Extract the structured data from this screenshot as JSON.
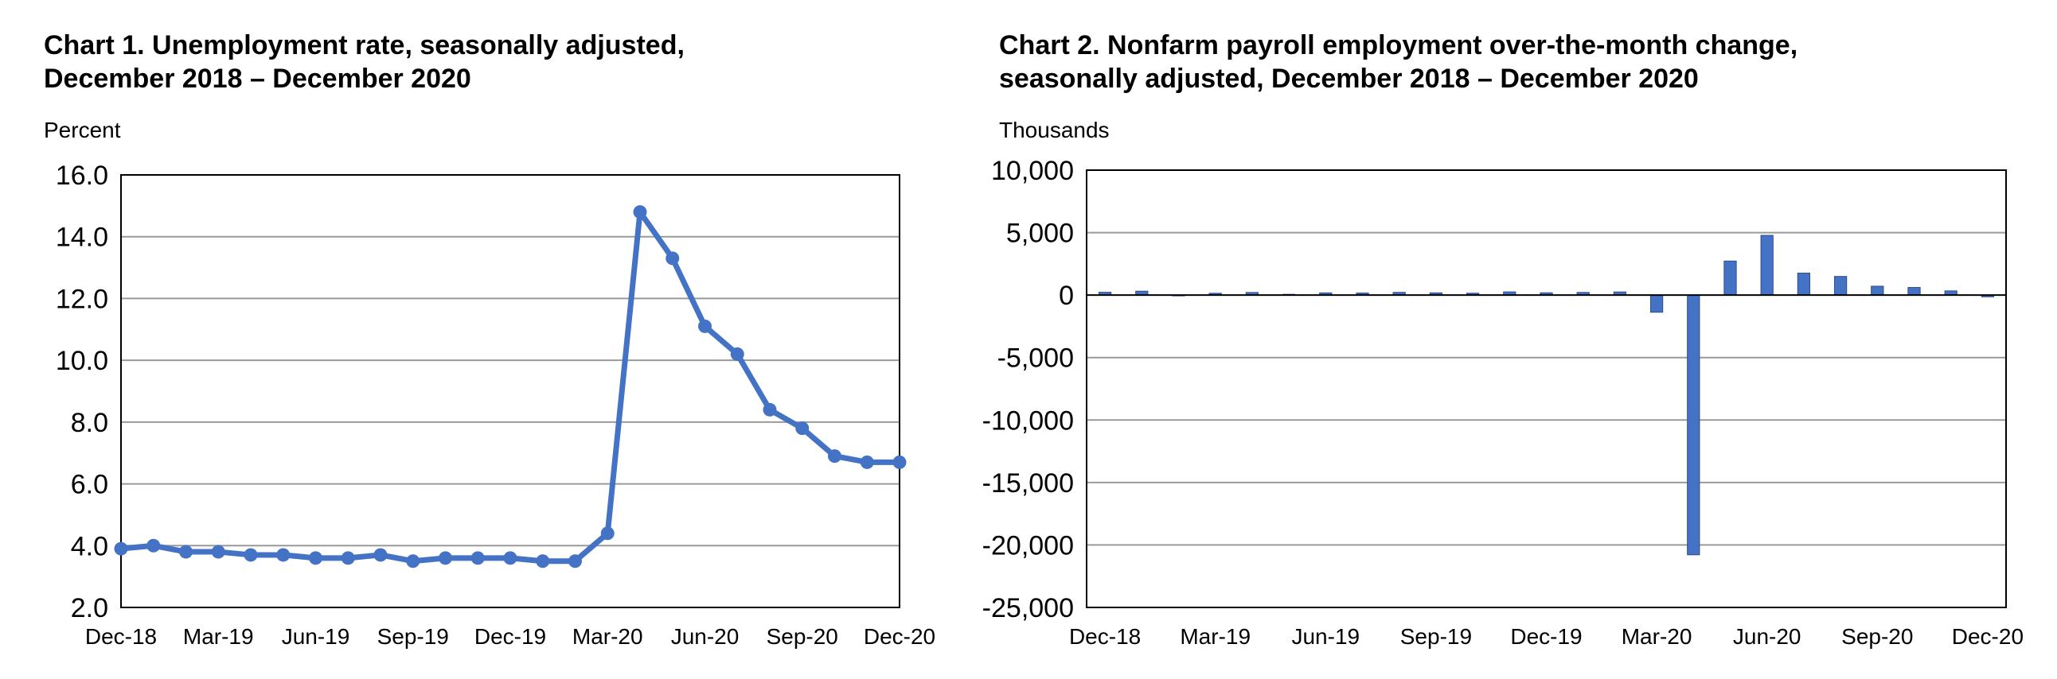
{
  "chart_data": [
    {
      "type": "line",
      "title": [
        "Chart 1. Unemployment rate, seasonally adjusted,",
        "December 2018 – December 2020"
      ],
      "ylabel": "Percent",
      "xlabel": "",
      "ylim": [
        2,
        16
      ],
      "y_ticks": [
        "16.0",
        "14.0",
        "12.0",
        "10.0",
        "8.0",
        "6.0",
        "4.0",
        "2.0"
      ],
      "x_tick_labels": [
        "Dec-18",
        "Mar-19",
        "Jun-19",
        "Sep-19",
        "Dec-19",
        "Mar-20",
        "Jun-20",
        "Sep-20",
        "Dec-20"
      ],
      "grid": true,
      "color": "#4472C4",
      "x": [
        "Dec-18",
        "Jan-19",
        "Feb-19",
        "Mar-19",
        "Apr-19",
        "May-19",
        "Jun-19",
        "Jul-19",
        "Aug-19",
        "Sep-19",
        "Oct-19",
        "Nov-19",
        "Dec-19",
        "Jan-20",
        "Feb-20",
        "Mar-20",
        "Apr-20",
        "May-20",
        "Jun-20",
        "Jul-20",
        "Aug-20",
        "Sep-20",
        "Oct-20",
        "Nov-20",
        "Dec-20"
      ],
      "values": [
        3.9,
        4.0,
        3.8,
        3.8,
        3.7,
        3.7,
        3.6,
        3.6,
        3.7,
        3.5,
        3.6,
        3.6,
        3.6,
        3.5,
        3.5,
        4.4,
        14.8,
        13.3,
        11.1,
        10.2,
        8.4,
        7.8,
        6.9,
        6.7,
        6.7
      ]
    },
    {
      "type": "bar",
      "title": [
        "Chart 2. Nonfarm payroll employment over-the-month change,",
        "seasonally adjusted, December 2018 – December 2020"
      ],
      "ylabel": "Thousands",
      "xlabel": "",
      "ylim": [
        -25000,
        10000
      ],
      "y_ticks": [
        "10,000",
        "5,000",
        "0",
        "-5,000",
        "-10,000",
        "-15,000",
        "-20,000",
        "-25,000"
      ],
      "x_tick_labels": [
        "Dec-18",
        "Mar-19",
        "Jun-19",
        "Sep-19",
        "Dec-19",
        "Mar-20",
        "Jun-20",
        "Sep-20",
        "Dec-20"
      ],
      "grid": true,
      "color": "#4472C4",
      "x": [
        "Dec-18",
        "Jan-19",
        "Feb-19",
        "Mar-19",
        "Apr-19",
        "May-19",
        "Jun-19",
        "Jul-19",
        "Aug-19",
        "Sep-19",
        "Oct-19",
        "Nov-19",
        "Dec-19",
        "Jan-20",
        "Feb-20",
        "Mar-20",
        "Apr-20",
        "May-20",
        "Jun-20",
        "Jul-20",
        "Aug-20",
        "Sep-20",
        "Oct-20",
        "Nov-20",
        "Dec-20"
      ],
      "values": [
        227,
        312,
        1,
        147,
        210,
        62,
        178,
        166,
        219,
        180,
        152,
        256,
        184,
        214,
        251,
        -1373,
        -20787,
        2725,
        4781,
        1761,
        1493,
        711,
        610,
        336,
        -140
      ]
    }
  ]
}
